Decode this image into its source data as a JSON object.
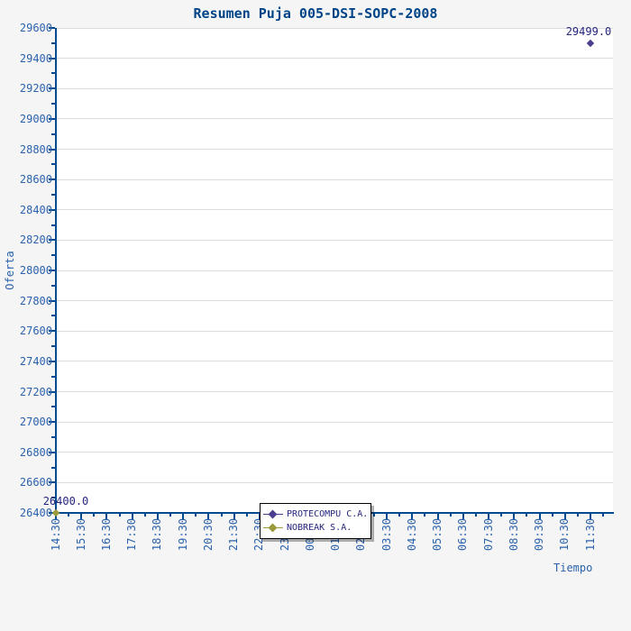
{
  "chart_data": {
    "type": "scatter",
    "title": "Resumen Puja 005-DSI-SOPC-2008",
    "xlabel": "Tiempo",
    "ylabel": "Oferta",
    "ylim": [
      26400,
      29600
    ],
    "y_tick_step": 200,
    "y_ticks": [
      26400,
      26600,
      26800,
      27000,
      27200,
      27400,
      27600,
      27800,
      28000,
      28200,
      28400,
      28600,
      28800,
      29000,
      29200,
      29400,
      29600
    ],
    "x_categories": [
      "14:30",
      "15:30",
      "16:30",
      "17:30",
      "18:30",
      "19:30",
      "20:30",
      "21:30",
      "22:30",
      "23:30",
      "00:30",
      "01:30",
      "02:30",
      "03:30",
      "04:30",
      "05:30",
      "06:30",
      "07:30",
      "08:30",
      "09:30",
      "10:30",
      "11:30"
    ],
    "grid": "horizontal-only",
    "legend_position": "bottom-center",
    "series": [
      {
        "name": "PROTECOMPU C.A.",
        "color": "#4a3f8f",
        "points": [
          {
            "x": "11:30",
            "y": 29499.0,
            "label": "29499.0"
          }
        ]
      },
      {
        "name": "NOBREAK S.A.",
        "color": "#9b9b3d",
        "points": [
          {
            "x": "14:30",
            "y": 26400.0,
            "label": "26400.0"
          }
        ]
      }
    ],
    "colors": {
      "background": "#f5f5f5",
      "plot_background": "#ffffff",
      "gridline": "#dcdcdc",
      "axis": "#004a8f",
      "tick_label": "#2b62ac",
      "title": "#004487",
      "point_label": "#26267f",
      "legend_text": "#26267f",
      "legend_border": "#000000"
    }
  }
}
